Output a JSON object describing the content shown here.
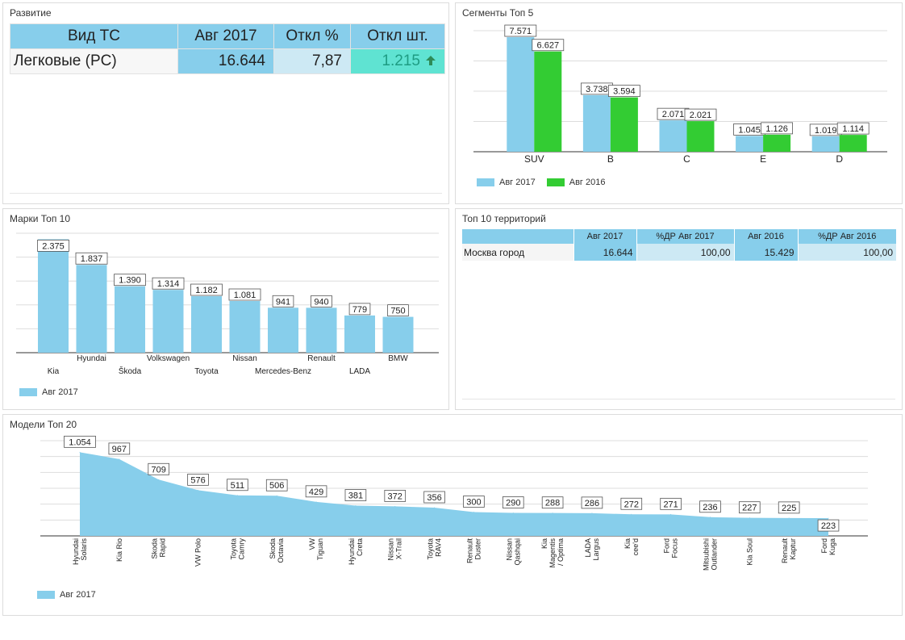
{
  "colors": {
    "blue": "#87ceeb",
    "green": "#33cc33",
    "light": "#cde9f4",
    "teal": "#5fe3d2",
    "up": "#2e8b57"
  },
  "razvitie": {
    "title": "Развитие",
    "headers": [
      "Вид ТС",
      "Авг 2017",
      "Откл %",
      "Откл шт."
    ],
    "row": {
      "label": "Легковые (PC)",
      "value": "16.644",
      "pct": "7,87",
      "abs": "1.215"
    },
    "trend_icon": "arrow-up-icon"
  },
  "segments": {
    "title": "Сегменты Топ 5",
    "legend": [
      "Авг 2017",
      "Авг 2016"
    ],
    "chart_data": {
      "type": "bar",
      "categories": [
        "SUV",
        "B",
        "C",
        "E",
        "D"
      ],
      "series": [
        {
          "name": "Авг 2017",
          "values": [
            7571,
            3738,
            2071,
            1045,
            1019
          ],
          "labels": [
            "7.571",
            "3.738",
            "2.071",
            "1.045",
            "1.019"
          ]
        },
        {
          "name": "Авг 2016",
          "values": [
            6627,
            3594,
            2021,
            1126,
            1114
          ],
          "labels": [
            "6.627",
            "3.594",
            "2.021",
            "1.126",
            "1.114"
          ]
        }
      ],
      "ylim": [
        0,
        8000
      ],
      "grid": true,
      "legend_position": "bottom-left"
    }
  },
  "brands": {
    "title": "Марки Топ 10",
    "legend": [
      "Авг 2017"
    ],
    "chart_data": {
      "type": "bar",
      "categories": [
        "Kia",
        "Hyundai",
        "Škoda",
        "Volkswagen",
        "Toyota",
        "Nissan",
        "Mercedes-Benz",
        "Renault",
        "LADA",
        "BMW"
      ],
      "series": [
        {
          "name": "Авг 2017",
          "values": [
            2375,
            1837,
            1390,
            1314,
            1182,
            1081,
            941,
            940,
            779,
            750
          ],
          "labels": [
            "2.375",
            "1.837",
            "1.390",
            "1.314",
            "1.182",
            "1.081",
            "941",
            "940",
            "779",
            "750"
          ]
        }
      ],
      "ylim": [
        0,
        2500
      ],
      "grid": true,
      "legend_position": "bottom-left"
    }
  },
  "territories": {
    "title": "Топ 10 территорий",
    "headers": [
      "",
      "Авг 2017",
      "%ДР Авг 2017",
      "Авг 2016",
      "%ДР Авг 2016"
    ],
    "rows": [
      {
        "name": "Москва город",
        "a2017": "16.644",
        "p2017": "100,00",
        "a2016": "15.429",
        "p2016": "100,00"
      }
    ]
  },
  "models": {
    "title": "Модели Топ 20",
    "legend": [
      "Авг 2017"
    ],
    "chart_data": {
      "type": "area",
      "categories": [
        [
          "Hyundai",
          "Solaris"
        ],
        [
          "Kia Rio"
        ],
        [
          "Skoda",
          "Rapid"
        ],
        [
          "VW Polo"
        ],
        [
          "Toyota",
          "Camry"
        ],
        [
          "Skoda",
          "Octavia"
        ],
        [
          "VW",
          "Tiguan"
        ],
        [
          "Hyundai",
          "Creta"
        ],
        [
          "Nissan",
          "X-Trail"
        ],
        [
          "Toyota",
          "RAV4"
        ],
        [
          "Renault",
          "Duster"
        ],
        [
          "Nissan",
          "Qashqai"
        ],
        [
          "Kia",
          "Magentis",
          "/ Optima"
        ],
        [
          "LADA",
          "Largus"
        ],
        [
          "Kia",
          "cee'd"
        ],
        [
          "Ford",
          "Focus"
        ],
        [
          "Mitsubishi",
          "Outlander"
        ],
        [
          "Kia Soul"
        ],
        [
          "Renault",
          "Kaptur"
        ],
        [
          "Ford",
          "Kuga"
        ]
      ],
      "series": [
        {
          "name": "Авг 2017",
          "values": [
            1054,
            967,
            709,
            576,
            511,
            506,
            429,
            381,
            372,
            356,
            300,
            290,
            288,
            286,
            272,
            271,
            236,
            227,
            225,
            223
          ],
          "labels": [
            "1.054",
            "967",
            "709",
            "576",
            "511",
            "506",
            "429",
            "381",
            "372",
            "356",
            "300",
            "290",
            "288",
            "286",
            "272",
            "271",
            "236",
            "227",
            "225",
            "223"
          ]
        }
      ],
      "ylim": [
        0,
        1200
      ],
      "grid": true,
      "legend_position": "bottom-left"
    }
  }
}
